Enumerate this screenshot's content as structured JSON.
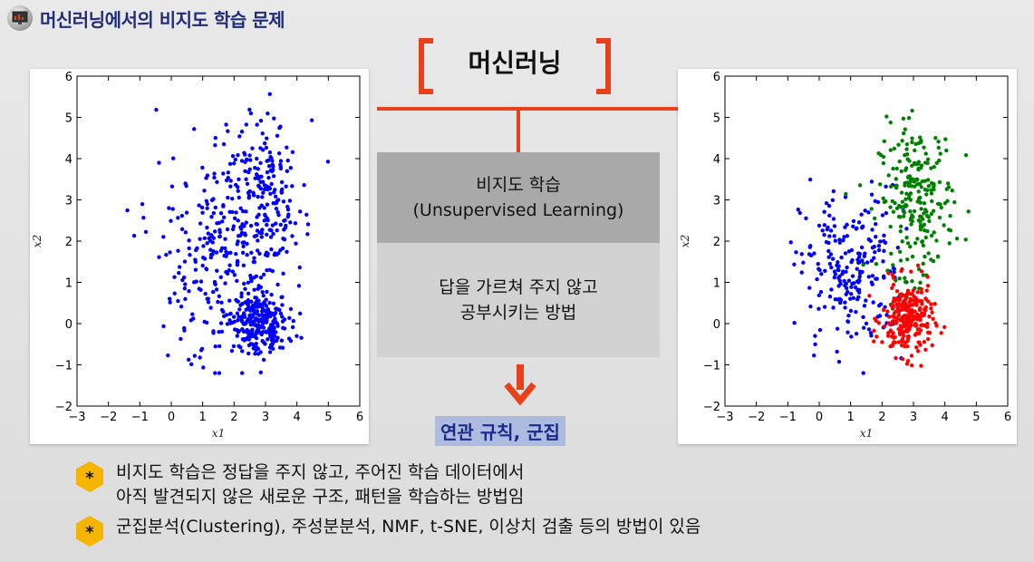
{
  "header": {
    "title": "머신러닝에서의 비지도 학습 문제",
    "icon": "monitor-icon"
  },
  "slide_heading": "머신러닝",
  "center": {
    "box_title_line1": "비지도 학습",
    "box_title_line2": "(Unsupervised Learning)",
    "desc_line1": "답을 가르쳐 주지 않고",
    "desc_line2": "공부시키는 방법",
    "related": "연관 규칙, 군집"
  },
  "bullets": [
    {
      "line1": "비지도 학습은 정답을 주지 않고, 주어진 학습 데이터에서",
      "line2": "아직 발견되지 않은 새로운 구조, 패턴을 학습하는 방법임"
    },
    {
      "line1": "군집분석(Clustering), 주성분분석, NMF, t-SNE, 이상치 검출 등의 방법이 있음"
    }
  ],
  "colors": {
    "accent": "#e8401a",
    "title": "#1f2d7a",
    "hex_bullet": "#f5b400",
    "series_blue": "#0000ff",
    "series_green": "#008000",
    "series_red": "#ff0000"
  },
  "chart_data": [
    {
      "type": "scatter",
      "title": "",
      "xlabel": "x1",
      "ylabel": "x2",
      "xlim": [
        -3,
        6
      ],
      "ylim": [
        -2,
        6
      ],
      "xticks": [
        -3,
        -2,
        -1,
        0,
        1,
        2,
        3,
        4,
        5,
        6
      ],
      "yticks": [
        -2,
        -1,
        0,
        1,
        2,
        3,
        4,
        5,
        6
      ],
      "grid": false,
      "series": [
        {
          "color": "#0000ff",
          "center": [
            1.3,
            1.5
          ],
          "spread": [
            1.0,
            1.2
          ],
          "count": 230
        },
        {
          "color": "#0000ff",
          "center": [
            3.0,
            3.0
          ],
          "spread": [
            0.6,
            1.0
          ],
          "count": 220
        },
        {
          "color": "#0000ff",
          "center": [
            2.8,
            0.0
          ],
          "spread": [
            0.45,
            0.45
          ],
          "count": 250
        }
      ]
    },
    {
      "type": "scatter",
      "title": "",
      "xlabel": "x1",
      "ylabel": "x2",
      "xlim": [
        -3,
        6
      ],
      "ylim": [
        -2,
        6
      ],
      "xticks": [
        -3,
        -2,
        -1,
        0,
        1,
        2,
        3,
        4,
        5,
        6
      ],
      "yticks": [
        -2,
        -1,
        0,
        1,
        2,
        3,
        4,
        5,
        6
      ],
      "grid": false,
      "series": [
        {
          "color": "#0000ff",
          "center": [
            1.0,
            1.3
          ],
          "spread": [
            0.8,
            1.0
          ],
          "count": 230
        },
        {
          "color": "#008000",
          "center": [
            3.1,
            3.0
          ],
          "spread": [
            0.6,
            0.9
          ],
          "count": 240
        },
        {
          "color": "#ff0000",
          "center": [
            2.8,
            0.1
          ],
          "spread": [
            0.4,
            0.45
          ],
          "count": 250
        }
      ]
    }
  ]
}
